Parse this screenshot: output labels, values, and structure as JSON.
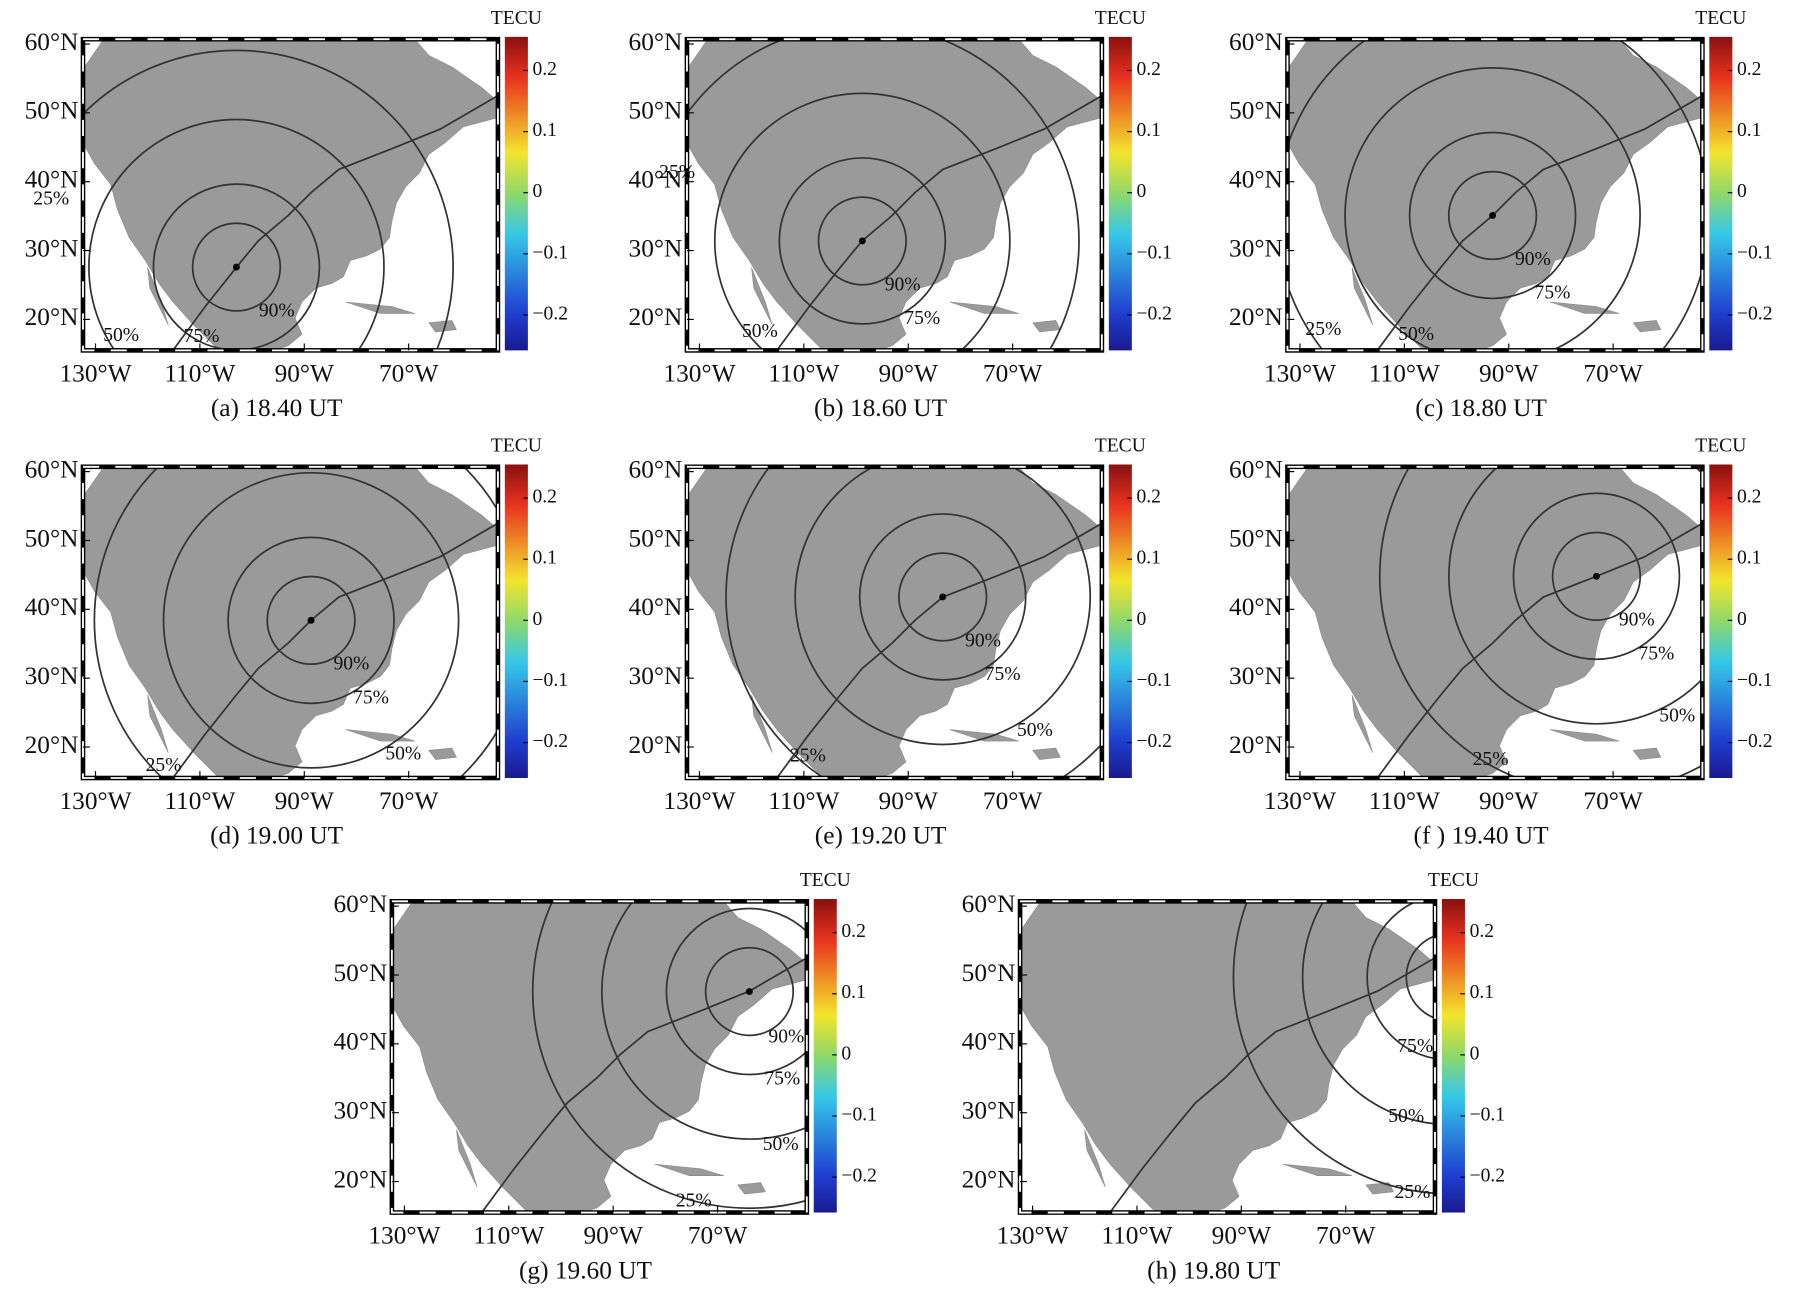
{
  "chart_data": [
    {
      "type": "map",
      "title": "(a) 18.40 UT",
      "xlim": [
        -132.4,
        -52.9
      ],
      "ylim": [
        15.5,
        60.7
      ],
      "xticks": [
        {
          "value": -130,
          "label": "130°W"
        },
        {
          "value": -110,
          "label": "110°W"
        },
        {
          "value": -90,
          "label": "90°W"
        },
        {
          "value": -70,
          "label": "70°W"
        }
      ],
      "yticks": [
        {
          "value": 60,
          "label": "60°N"
        },
        {
          "value": 50,
          "label": "50°N"
        },
        {
          "value": 40,
          "label": "40°N"
        },
        {
          "value": 30,
          "label": "30°N"
        },
        {
          "value": 20,
          "label": "20°N"
        }
      ],
      "colorbar_label": "TECU",
      "clim": [
        -0.258,
        0.255
      ],
      "cticks": [
        0.2,
        0.1,
        0,
        {
          "value": -0.1,
          "label": "−0.1"
        },
        {
          "value": -0.2,
          "label": "−0.2"
        }
      ],
      "center": [
        -103.0,
        27.6
      ],
      "ring_labels": [
        "90%",
        "75%",
        "50%",
        "25%"
      ]
    },
    {
      "type": "map",
      "title": "(b) 18.60 UT",
      "xlim": [
        -132.4,
        -52.9
      ],
      "ylim": [
        15.5,
        60.7
      ],
      "xticks": [
        {
          "value": -130,
          "label": "130°W"
        },
        {
          "value": -110,
          "label": "110°W"
        },
        {
          "value": -90,
          "label": "90°W"
        },
        {
          "value": -70,
          "label": "70°W"
        }
      ],
      "yticks": [
        {
          "value": 60,
          "label": "60°N"
        },
        {
          "value": 50,
          "label": "50°N"
        },
        {
          "value": 40,
          "label": "40°N"
        },
        {
          "value": 30,
          "label": "30°N"
        },
        {
          "value": 20,
          "label": "20°N"
        }
      ],
      "colorbar_label": "TECU",
      "clim": [
        -0.258,
        0.255
      ],
      "cticks": [
        0.2,
        0.1,
        0,
        {
          "value": -0.1,
          "label": "−0.1"
        },
        {
          "value": -0.2,
          "label": "−0.2"
        }
      ],
      "center": [
        -98.8,
        31.4
      ],
      "ring_labels": [
        "90%",
        "75%",
        "50%",
        "25%"
      ]
    },
    {
      "type": "map",
      "title": "(c) 18.80 UT",
      "xlim": [
        -132.4,
        -52.9
      ],
      "ylim": [
        15.5,
        60.7
      ],
      "xticks": [
        {
          "value": -130,
          "label": "130°W"
        },
        {
          "value": -110,
          "label": "110°W"
        },
        {
          "value": -90,
          "label": "90°W"
        },
        {
          "value": -70,
          "label": "70°W"
        }
      ],
      "yticks": [
        {
          "value": 60,
          "label": "60°N"
        },
        {
          "value": 50,
          "label": "50°N"
        },
        {
          "value": 40,
          "label": "40°N"
        },
        {
          "value": 30,
          "label": "30°N"
        },
        {
          "value": 20,
          "label": "20°N"
        }
      ],
      "colorbar_label": "TECU",
      "clim": [
        -0.258,
        0.255
      ],
      "cticks": [
        0.2,
        0.1,
        0,
        {
          "value": -0.1,
          "label": "−0.1"
        },
        {
          "value": -0.2,
          "label": "−0.2"
        }
      ],
      "center": [
        -93.1,
        35.1
      ],
      "ring_labels": [
        "90%",
        "75%",
        "50%",
        "25%"
      ]
    },
    {
      "type": "map",
      "title": "(d) 19.00 UT",
      "xlim": [
        -132.4,
        -52.9
      ],
      "ylim": [
        15.5,
        60.7
      ],
      "xticks": [
        {
          "value": -130,
          "label": "130°W"
        },
        {
          "value": -110,
          "label": "110°W"
        },
        {
          "value": -90,
          "label": "90°W"
        },
        {
          "value": -70,
          "label": "70°W"
        }
      ],
      "yticks": [
        {
          "value": 60,
          "label": "60°N"
        },
        {
          "value": 50,
          "label": "50°N"
        },
        {
          "value": 40,
          "label": "40°N"
        },
        {
          "value": 30,
          "label": "30°N"
        },
        {
          "value": 20,
          "label": "20°N"
        }
      ],
      "colorbar_label": "TECU",
      "clim": [
        -0.258,
        0.255
      ],
      "cticks": [
        0.2,
        0.1,
        0,
        {
          "value": -0.1,
          "label": "−0.1"
        },
        {
          "value": -0.2,
          "label": "−0.2"
        }
      ],
      "center": [
        -88.7,
        38.4
      ],
      "ring_labels": [
        "90%",
        "75%",
        "50%",
        "25%"
      ]
    },
    {
      "type": "map",
      "title": "(e) 19.20 UT",
      "xlim": [
        -132.4,
        -52.9
      ],
      "ylim": [
        15.5,
        60.7
      ],
      "xticks": [
        {
          "value": -130,
          "label": "130°W"
        },
        {
          "value": -110,
          "label": "110°W"
        },
        {
          "value": -90,
          "label": "90°W"
        },
        {
          "value": -70,
          "label": "70°W"
        }
      ],
      "yticks": [
        {
          "value": 60,
          "label": "60°N"
        },
        {
          "value": 50,
          "label": "50°N"
        },
        {
          "value": 40,
          "label": "40°N"
        },
        {
          "value": 30,
          "label": "30°N"
        },
        {
          "value": 20,
          "label": "20°N"
        }
      ],
      "colorbar_label": "TECU",
      "clim": [
        -0.258,
        0.255
      ],
      "cticks": [
        0.2,
        0.1,
        0,
        {
          "value": -0.1,
          "label": "−0.1"
        },
        {
          "value": -0.2,
          "label": "−0.2"
        }
      ],
      "center": [
        -83.4,
        41.8
      ],
      "ring_labels": [
        "90%",
        "75%",
        "50%",
        "25%"
      ]
    },
    {
      "type": "map",
      "title": "(f ) 19.40 UT",
      "xlim": [
        -132.4,
        -52.9
      ],
      "ylim": [
        15.5,
        60.7
      ],
      "xticks": [
        {
          "value": -130,
          "label": "130°W"
        },
        {
          "value": -110,
          "label": "110°W"
        },
        {
          "value": -90,
          "label": "90°W"
        },
        {
          "value": -70,
          "label": "70°W"
        }
      ],
      "yticks": [
        {
          "value": 60,
          "label": "60°N"
        },
        {
          "value": 50,
          "label": "50°N"
        },
        {
          "value": 40,
          "label": "40°N"
        },
        {
          "value": 30,
          "label": "30°N"
        },
        {
          "value": 20,
          "label": "20°N"
        }
      ],
      "colorbar_label": "TECU",
      "clim": [
        -0.258,
        0.255
      ],
      "cticks": [
        0.2,
        0.1,
        0,
        {
          "value": -0.1,
          "label": "−0.1"
        },
        {
          "value": -0.2,
          "label": "−0.2"
        }
      ],
      "center": [
        -73.2,
        44.8
      ],
      "ring_labels": [
        "90%",
        "75%",
        "50%",
        "25%"
      ]
    },
    {
      "type": "map",
      "title": "(g) 19.60 UT",
      "xlim": [
        -132.4,
        -52.9
      ],
      "ylim": [
        15.5,
        60.7
      ],
      "xticks": [
        {
          "value": -130,
          "label": "130°W"
        },
        {
          "value": -110,
          "label": "110°W"
        },
        {
          "value": -90,
          "label": "90°W"
        },
        {
          "value": -70,
          "label": "70°W"
        }
      ],
      "yticks": [
        {
          "value": 60,
          "label": "60°N"
        },
        {
          "value": 50,
          "label": "50°N"
        },
        {
          "value": 40,
          "label": "40°N"
        },
        {
          "value": 30,
          "label": "30°N"
        },
        {
          "value": 20,
          "label": "20°N"
        }
      ],
      "colorbar_label": "TECU",
      "clim": [
        -0.258,
        0.255
      ],
      "cticks": [
        0.2,
        0.1,
        0,
        {
          "value": -0.1,
          "label": "−0.1"
        },
        {
          "value": -0.2,
          "label": "−0.2"
        }
      ],
      "center": [
        -63.9,
        47.6
      ],
      "ring_labels": [
        "90%",
        "75%",
        "50%",
        "25%"
      ]
    },
    {
      "type": "map",
      "title": "(h) 19.80 UT",
      "xlim": [
        -132.4,
        -52.9
      ],
      "ylim": [
        15.5,
        60.7
      ],
      "xticks": [
        {
          "value": -130,
          "label": "130°W"
        },
        {
          "value": -110,
          "label": "110°W"
        },
        {
          "value": -90,
          "label": "90°W"
        },
        {
          "value": -70,
          "label": "70°W"
        }
      ],
      "yticks": [
        {
          "value": 60,
          "label": "60°N"
        },
        {
          "value": 50,
          "label": "50°N"
        },
        {
          "value": 40,
          "label": "40°N"
        },
        {
          "value": 30,
          "label": "30°N"
        },
        {
          "value": 20,
          "label": "20°N"
        }
      ],
      "colorbar_label": "TECU",
      "clim": [
        -0.258,
        0.255
      ],
      "cticks": [
        0.2,
        0.1,
        0,
        {
          "value": -0.1,
          "label": "−0.1"
        },
        {
          "value": -0.2,
          "label": "−0.2"
        }
      ],
      "center": [
        -50.0,
        49.7
      ],
      "ring_labels": [
        "75%",
        "50%",
        "25%"
      ]
    }
  ]
}
